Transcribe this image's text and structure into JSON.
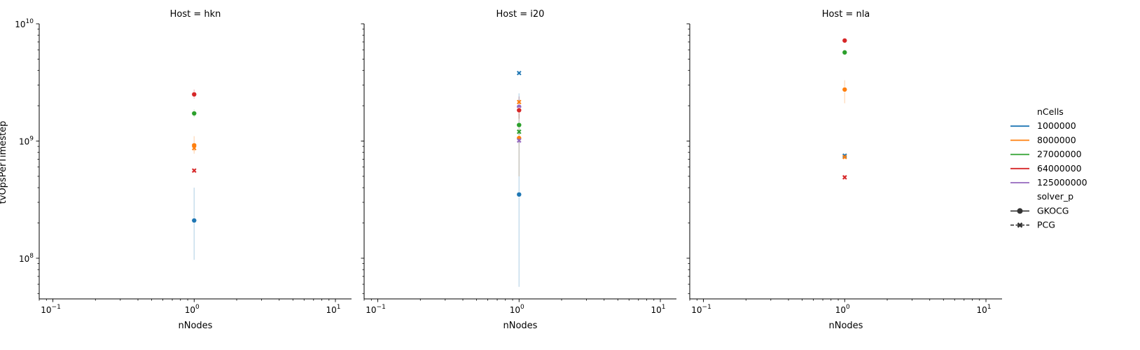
{
  "chart_data": {
    "type": "scatter",
    "ylabel": "tvOpsPerTimestep",
    "xlabel": "nNodes",
    "x_scale": "log",
    "y_scale": "log",
    "xlim": [
      0.08,
      13
    ],
    "ylim": [
      45000000,
      10000000000
    ],
    "x_major_ticks": [
      {
        "value": 0.1,
        "base": "10",
        "exp": "−1"
      },
      {
        "value": 1,
        "base": "10",
        "exp": "0"
      },
      {
        "value": 10,
        "base": "10",
        "exp": "1"
      }
    ],
    "y_major_ticks": [
      {
        "value": 100000000,
        "base": "10",
        "exp": "8"
      },
      {
        "value": 1000000000,
        "base": "10",
        "exp": "9"
      },
      {
        "value": 10000000000,
        "base": "10",
        "exp": "10"
      }
    ],
    "legend": {
      "placement": "right",
      "hue_title": "nCells",
      "hue_entries": [
        {
          "label": "1000000",
          "color": "#1f77b4"
        },
        {
          "label": "8000000",
          "color": "#ff7f0e"
        },
        {
          "label": "27000000",
          "color": "#2ca02c"
        },
        {
          "label": "64000000",
          "color": "#d62728"
        },
        {
          "label": "125000000",
          "color": "#9467bd"
        }
      ],
      "style_title": "solver_p",
      "style_entries": [
        {
          "label": "GKOCG",
          "marker": "circle"
        },
        {
          "label": "PCG",
          "marker": "x"
        }
      ]
    },
    "panels": [
      {
        "title": "Host = hkn",
        "points": [
          {
            "nCells": "64000000",
            "solver": "GKOCG",
            "x": 1,
            "y": 2500000000,
            "lo": 2300000000,
            "hi": 2750000000
          },
          {
            "nCells": "27000000",
            "solver": "GKOCG",
            "x": 1,
            "y": 1720000000,
            "lo": 1600000000,
            "hi": 1850000000
          },
          {
            "nCells": "8000000",
            "solver": "GKOCG",
            "x": 1,
            "y": 920000000,
            "lo": 780000000,
            "hi": 1100000000
          },
          {
            "nCells": "8000000",
            "solver": "PCG",
            "x": 1,
            "y": 870000000,
            "lo": 820000000,
            "hi": 920000000
          },
          {
            "nCells": "64000000",
            "solver": "PCG",
            "x": 1,
            "y": 560000000,
            "lo": 540000000,
            "hi": 580000000
          },
          {
            "nCells": "1000000",
            "solver": "GKOCG",
            "x": 1,
            "y": 210000000,
            "lo": 97000000,
            "hi": 400000000
          }
        ]
      },
      {
        "title": "Host = i20",
        "points": [
          {
            "nCells": "1000000",
            "solver": "PCG",
            "x": 1,
            "y": 3800000000,
            "lo": 3700000000,
            "hi": 3900000000
          },
          {
            "nCells": "8000000",
            "solver": "PCG",
            "x": 1,
            "y": 2150000000,
            "lo": 2050000000,
            "hi": 2250000000
          },
          {
            "nCells": "125000000",
            "solver": "GKOCG",
            "x": 1,
            "y": 1960000000,
            "lo": 1880000000,
            "hi": 2050000000
          },
          {
            "nCells": "64000000",
            "solver": "GKOCG",
            "x": 1,
            "y": 1830000000,
            "lo": 1550000000,
            "hi": 2400000000
          },
          {
            "nCells": "27000000",
            "solver": "GKOCG",
            "x": 1,
            "y": 1370000000,
            "lo": 1300000000,
            "hi": 1450000000
          },
          {
            "nCells": "27000000",
            "solver": "PCG",
            "x": 1,
            "y": 1200000000,
            "lo": 1150000000,
            "hi": 1250000000
          },
          {
            "nCells": "8000000",
            "solver": "GKOCG",
            "x": 1,
            "y": 1060000000,
            "lo": 500000000,
            "hi": 2200000000
          },
          {
            "nCells": "125000000",
            "solver": "PCG",
            "x": 1,
            "y": 1010000000,
            "lo": 960000000,
            "hi": 1060000000
          },
          {
            "nCells": "1000000",
            "solver": "GKOCG",
            "x": 1,
            "y": 350000000,
            "lo": 57000000,
            "hi": 2550000000
          }
        ]
      },
      {
        "title": "Host = nla",
        "points": [
          {
            "nCells": "64000000",
            "solver": "GKOCG",
            "x": 1,
            "y": 7200000000,
            "lo": 7000000000,
            "hi": 7400000000
          },
          {
            "nCells": "27000000",
            "solver": "GKOCG",
            "x": 1,
            "y": 5700000000,
            "lo": 5500000000,
            "hi": 5900000000
          },
          {
            "nCells": "8000000",
            "solver": "GKOCG",
            "x": 1,
            "y": 2750000000,
            "lo": 2100000000,
            "hi": 3300000000
          },
          {
            "nCells": "1000000",
            "solver": "PCG",
            "x": 1,
            "y": 750000000,
            "lo": 720000000,
            "hi": 780000000
          },
          {
            "nCells": "8000000",
            "solver": "PCG",
            "x": 1,
            "y": 730000000,
            "lo": 700000000,
            "hi": 760000000
          },
          {
            "nCells": "64000000",
            "solver": "PCG",
            "x": 1,
            "y": 490000000,
            "lo": 470000000,
            "hi": 510000000
          }
        ]
      }
    ]
  }
}
